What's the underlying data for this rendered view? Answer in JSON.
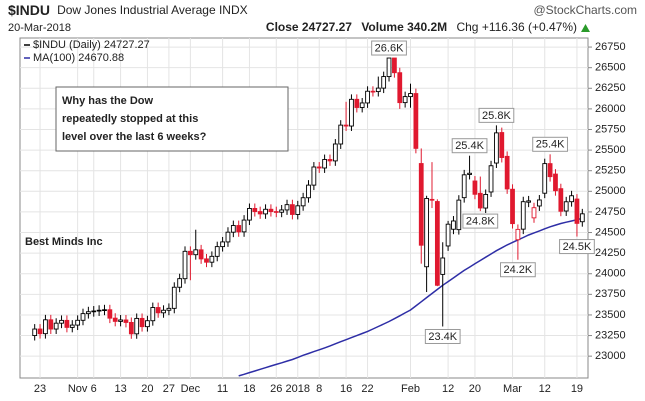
{
  "chart_data": {
    "type": "candlestick",
    "title": "$INDU",
    "subtitle": "Dow Jones Industrial Average INDX",
    "date": "20-Mar-2018",
    "source": "@StockCharts.com",
    "quote": [
      "Close 24727.27",
      "Volume 340.2M",
      "Chg +116.36 (+0.47%)"
    ],
    "annotations": [
      {
        "lines": [
          "Why has the Dow",
          "repeatedly stopped at this",
          "level over the last 6 weeks?"
        ],
        "color": "#1f3fbf"
      },
      {
        "lines": [
          "Best Minds Inc"
        ],
        "color": "#1f3fbf"
      }
    ],
    "categories": [
      null,
      "23",
      null,
      null,
      null,
      null,
      null,
      null,
      "Nov",
      null,
      null,
      "6",
      null,
      null,
      null,
      null,
      "13",
      null,
      null,
      null,
      null,
      "20",
      null,
      null,
      null,
      "27",
      null,
      null,
      null,
      "Dec",
      null,
      null,
      null,
      null,
      null,
      "11",
      null,
      null,
      null,
      null,
      "18",
      null,
      null,
      null,
      null,
      "26",
      null,
      null,
      null,
      "2018",
      null,
      null,
      null,
      "8",
      null,
      null,
      null,
      null,
      "16",
      null,
      null,
      null,
      "22",
      null,
      null,
      null,
      null,
      null,
      null,
      null,
      "Feb",
      null,
      null,
      null,
      null,
      null,
      null,
      "12",
      null,
      null,
      null,
      null,
      "20",
      null,
      null,
      null,
      null,
      null,
      null,
      "Mar",
      null,
      null,
      null,
      null,
      null,
      "12",
      null,
      null,
      null,
      null,
      null,
      "19",
      null
    ],
    "ylim": [
      22735,
      26860
    ],
    "yticks": [
      23000,
      23250,
      23500,
      23750,
      24000,
      24250,
      24500,
      24750,
      25000,
      25250,
      25500,
      25750,
      26000,
      26250,
      26500,
      26750
    ],
    "grid": true,
    "series": [
      {
        "name": "$INDU (Daily) 24727.27",
        "color_up": "#000000",
        "color_down": "#e0192f",
        "open": [
          23250,
          23329,
          23273,
          23441,
          23329,
          23400,
          23434,
          23349,
          23377,
          23435,
          23516,
          23539,
          23548,
          23557,
          23563,
          23461,
          23422,
          23439,
          23409,
          23271,
          23458,
          23358,
          23430,
          23590,
          23526,
          23557,
          23580,
          23836,
          23940,
          24272,
          24231,
          24290,
          24180,
          24140,
          24211,
          24329,
          24386,
          24504,
          24585,
          24508,
          24651,
          24792,
          24754,
          24726,
          24782,
          24754,
          24746,
          24774,
          24838,
          24719,
          24824,
          24922,
          25075,
          25295,
          25283,
          25386,
          25369,
          25574,
          25803,
          25792,
          26116,
          26017,
          26072,
          26214,
          26210,
          26252,
          26392,
          26617,
          26439,
          26076,
          26149,
          26186,
          25337,
          24085,
          24902,
          24876,
          23992,
          24337,
          24540,
          24535,
          24923,
          25204,
          25125,
          24976,
          24797,
          24992,
          25343,
          25713,
          25424,
          25025,
          24413,
          24541,
          24868,
          24678,
          24822,
          24977,
          25336,
          25209,
          25032,
          24761,
          24874,
          24906,
          24631
        ],
        "high": [
          23389,
          23389,
          23501,
          23501,
          23460,
          23494,
          23494,
          23437,
          23495,
          23576,
          23599,
          23608,
          23617,
          23623,
          23623,
          23521,
          23499,
          23499,
          23469,
          23518,
          23518,
          23490,
          23650,
          23650,
          23617,
          23640,
          23896,
          24000,
          24332,
          24332,
          24534,
          24350,
          24240,
          24271,
          24389,
          24446,
          24564,
          24645,
          24645,
          24711,
          24852,
          24852,
          24814,
          24842,
          24842,
          24814,
          24834,
          24898,
          24898,
          24884,
          24982,
          25135,
          25355,
          25355,
          25446,
          25446,
          25634,
          25863,
          26086,
          26176,
          26176,
          26132,
          26274,
          26274,
          26392,
          26452,
          26617,
          26608,
          26499,
          26209,
          26306,
          26246,
          25520,
          24946,
          25354,
          24903,
          24382,
          24641,
          24700,
          24953,
          25260,
          25432,
          25185,
          25179,
          25022,
          25370,
          25800,
          25773,
          25484,
          25085,
          24598,
          24934,
          24944,
          24861,
          24955,
          25396,
          25449,
          25269,
          25092,
          24933,
          25006,
          24966,
          24787
        ],
        "low": [
          23190,
          23213,
          23213,
          23269,
          23269,
          23340,
          23289,
          23289,
          23317,
          23375,
          23456,
          23479,
          23488,
          23497,
          23401,
          23362,
          23362,
          23349,
          23211,
          23211,
          23298,
          23298,
          23370,
          23466,
          23466,
          23497,
          23520,
          23776,
          23880,
          23921,
          24171,
          24120,
          24080,
          24080,
          24151,
          24269,
          24326,
          24444,
          24448,
          24448,
          24591,
          24694,
          24666,
          24666,
          24694,
          24686,
          24686,
          24714,
          24659,
          24659,
          24764,
          24862,
          25015,
          25223,
          25223,
          25309,
          25309,
          25514,
          25732,
          25732,
          25957,
          25957,
          26012,
          26150,
          26150,
          26192,
          26332,
          26379,
          26000,
          26016,
          26014,
          25461,
          24122,
          23778,
          24797,
          23849,
          23360,
          24277,
          24480,
          24475,
          24863,
          25144,
          24904,
          24760,
          24737,
          24932,
          25283,
          25350,
          24969,
          24548,
          24170,
          24481,
          24808,
          24618,
          24762,
          24917,
          25118,
          24947,
          24698,
          24701,
          24814,
          24451,
          24571
        ],
        "close": [
          23329,
          23273,
          23441,
          23329,
          23400,
          23434,
          23349,
          23377,
          23435,
          23516,
          23539,
          23548,
          23557,
          23563,
          23461,
          23422,
          23439,
          23409,
          23271,
          23458,
          23358,
          23430,
          23590,
          23526,
          23557,
          23580,
          23836,
          23940,
          24272,
          24231,
          24290,
          24180,
          24140,
          24211,
          24329,
          24386,
          24504,
          24585,
          24508,
          24651,
          24792,
          24754,
          24726,
          24782,
          24754,
          24746,
          24774,
          24838,
          24719,
          24824,
          24922,
          25075,
          25295,
          25283,
          25386,
          25369,
          25574,
          25803,
          25792,
          26116,
          26017,
          26072,
          26214,
          26210,
          26252,
          26392,
          26617,
          26439,
          26076,
          26149,
          26186,
          25521,
          24346,
          24913,
          24893,
          23860,
          24191,
          24601,
          24640,
          24893,
          25200,
          25219,
          24964,
          24798,
          24962,
          25310,
          25709,
          25410,
          25029,
          24608,
          24538,
          24874,
          24884,
          24801,
          24895,
          25336,
          25178,
          25007,
          24758,
          24873,
          24946,
          24611,
          24727
        ],
        "high_labels": {
          "66": "26.6K",
          "81": "25.4K",
          "86": "25.8K",
          "96": "25.4K"
        },
        "low_labels": {
          "76": "23.4K",
          "83": "24.8K",
          "90": "24.2K",
          "101": "24.5K"
        }
      },
      {
        "name": "MA(100) 24670.88",
        "color": "#2e2ea6",
        "values": [
          null,
          null,
          null,
          null,
          null,
          null,
          null,
          null,
          null,
          null,
          null,
          null,
          null,
          null,
          null,
          null,
          null,
          null,
          null,
          null,
          null,
          null,
          null,
          null,
          null,
          null,
          null,
          null,
          null,
          null,
          null,
          null,
          null,
          null,
          null,
          null,
          null,
          null,
          22760,
          22780,
          22800,
          22820,
          22840,
          22860,
          22880,
          22900,
          22920,
          22940,
          22960,
          22985,
          23010,
          23032,
          23055,
          23077,
          23100,
          23125,
          23150,
          23175,
          23200,
          23225,
          23250,
          23275,
          23300,
          23330,
          23360,
          23390,
          23420,
          23455,
          23490,
          23525,
          23560,
          23610,
          23660,
          23710,
          23760,
          23810,
          23860,
          23905,
          23950,
          23995,
          24040,
          24080,
          24120,
          24160,
          24200,
          24240,
          24280,
          24315,
          24350,
          24380,
          24410,
          24440,
          24470,
          24495,
          24520,
          24545,
          24570,
          24590,
          24610,
          24625,
          24640,
          24655,
          24670.88
        ]
      }
    ]
  }
}
